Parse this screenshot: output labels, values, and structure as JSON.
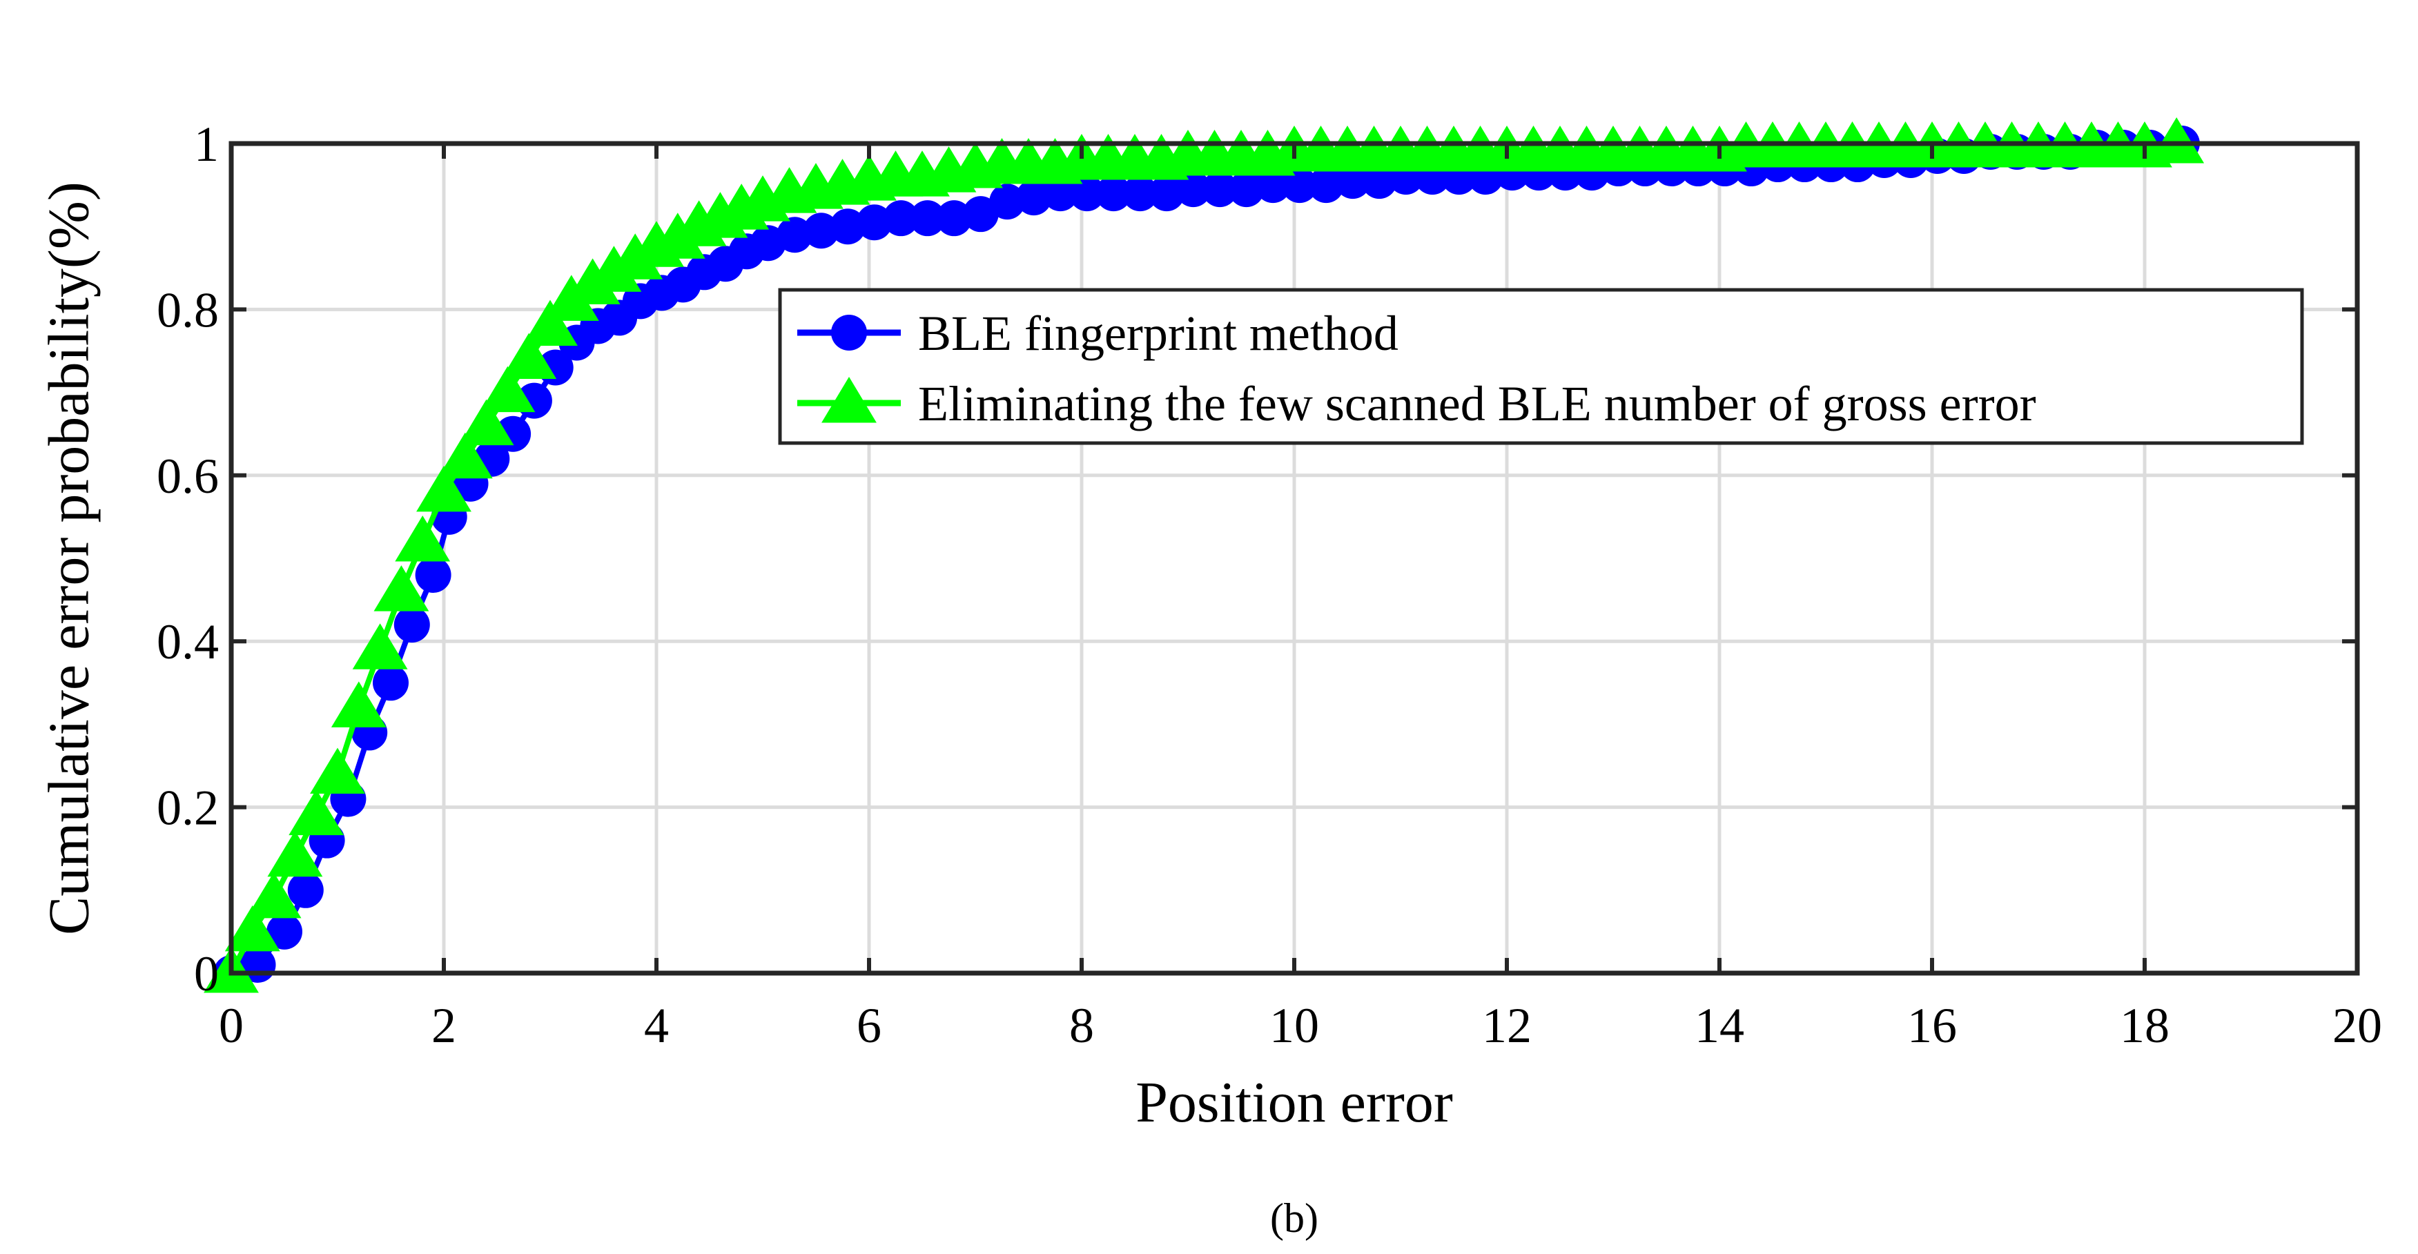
{
  "chart_data": {
    "type": "line",
    "xlabel": "Position error",
    "ylabel": "Cumulative error probability(%)",
    "xlim": [
      0,
      20
    ],
    "ylim": [
      0,
      1
    ],
    "xticks": [
      "0",
      "2",
      "4",
      "6",
      "8",
      "10",
      "12",
      "14",
      "16",
      "18",
      "20"
    ],
    "yticks": [
      "0",
      "0.2",
      "0.4",
      "0.6",
      "0.8",
      "1"
    ],
    "grid": true,
    "legend_position": "center-right",
    "caption": "(b)",
    "series": [
      {
        "name": "BLE fingerprint method",
        "color": "#0000ff",
        "marker": "circle",
        "x": [
          0,
          0.25,
          0.5,
          0.7,
          0.9,
          1.1,
          1.3,
          1.5,
          1.7,
          1.9,
          2.05,
          2.25,
          2.45,
          2.65,
          2.85,
          3.05,
          3.25,
          3.45,
          3.65,
          3.85,
          4.05,
          4.25,
          4.45,
          4.65,
          4.85,
          5.05,
          5.3,
          5.55,
          5.8,
          6.05,
          6.3,
          6.55,
          6.8,
          7.05,
          7.3,
          7.55,
          7.8,
          8.05,
          8.3,
          8.55,
          8.8,
          9.05,
          9.3,
          9.55,
          9.8,
          10.05,
          10.3,
          10.55,
          10.8,
          11.05,
          11.3,
          11.55,
          11.8,
          12.05,
          12.3,
          12.55,
          12.8,
          13.05,
          13.3,
          13.55,
          13.8,
          14.05,
          14.3,
          14.55,
          14.8,
          15.05,
          15.3,
          15.55,
          15.8,
          16.05,
          16.3,
          16.55,
          16.8,
          17.05,
          17.3,
          17.55,
          17.8,
          18.05,
          18.35
        ],
        "y": [
          0,
          0.01,
          0.05,
          0.1,
          0.16,
          0.21,
          0.29,
          0.35,
          0.42,
          0.48,
          0.55,
          0.59,
          0.62,
          0.65,
          0.69,
          0.73,
          0.76,
          0.78,
          0.79,
          0.81,
          0.82,
          0.83,
          0.845,
          0.855,
          0.87,
          0.88,
          0.89,
          0.895,
          0.9,
          0.905,
          0.91,
          0.91,
          0.91,
          0.915,
          0.93,
          0.935,
          0.94,
          0.94,
          0.94,
          0.94,
          0.94,
          0.945,
          0.945,
          0.945,
          0.95,
          0.95,
          0.95,
          0.955,
          0.955,
          0.96,
          0.96,
          0.96,
          0.96,
          0.965,
          0.965,
          0.965,
          0.965,
          0.97,
          0.97,
          0.97,
          0.97,
          0.97,
          0.97,
          0.975,
          0.975,
          0.975,
          0.975,
          0.98,
          0.98,
          0.985,
          0.985,
          0.99,
          0.99,
          0.99,
          0.99,
          0.995,
          0.995,
          0.995,
          1.0
        ]
      },
      {
        "name": "Eliminating the few scanned BLE number of gross error",
        "color": "#00ff00",
        "marker": "triangle",
        "x": [
          0,
          0.2,
          0.4,
          0.6,
          0.8,
          1.0,
          1.2,
          1.4,
          1.6,
          1.8,
          2.0,
          2.2,
          2.4,
          2.6,
          2.8,
          3.0,
          3.2,
          3.4,
          3.6,
          3.8,
          4.0,
          4.2,
          4.4,
          4.6,
          4.8,
          5.0,
          5.25,
          5.5,
          5.75,
          6.0,
          6.25,
          6.5,
          6.75,
          7.0,
          7.25,
          7.5,
          7.75,
          8.0,
          8.25,
          8.5,
          8.75,
          9.0,
          9.25,
          9.5,
          9.75,
          10.0,
          10.25,
          10.5,
          10.75,
          11.0,
          11.25,
          11.5,
          11.75,
          12.0,
          12.25,
          12.5,
          12.75,
          13.0,
          13.25,
          13.5,
          13.75,
          14.0,
          14.25,
          14.5,
          14.75,
          15.0,
          15.25,
          15.5,
          15.75,
          16.0,
          16.25,
          16.5,
          16.75,
          17.0,
          17.25,
          17.5,
          17.75,
          18.0,
          18.3
        ],
        "y": [
          0,
          0.05,
          0.09,
          0.14,
          0.19,
          0.24,
          0.32,
          0.39,
          0.46,
          0.52,
          0.58,
          0.62,
          0.66,
          0.7,
          0.74,
          0.78,
          0.81,
          0.83,
          0.845,
          0.86,
          0.875,
          0.885,
          0.9,
          0.91,
          0.92,
          0.93,
          0.94,
          0.945,
          0.95,
          0.955,
          0.96,
          0.96,
          0.965,
          0.97,
          0.975,
          0.975,
          0.975,
          0.98,
          0.98,
          0.98,
          0.98,
          0.985,
          0.985,
          0.985,
          0.985,
          0.99,
          0.99,
          0.99,
          0.99,
          0.99,
          0.99,
          0.99,
          0.99,
          0.99,
          0.99,
          0.99,
          0.99,
          0.99,
          0.99,
          0.99,
          0.99,
          0.99,
          0.995,
          0.995,
          0.995,
          0.995,
          0.995,
          0.995,
          0.995,
          0.995,
          0.995,
          0.995,
          0.995,
          0.995,
          0.995,
          0.995,
          0.995,
          0.995,
          1.0
        ]
      }
    ]
  }
}
